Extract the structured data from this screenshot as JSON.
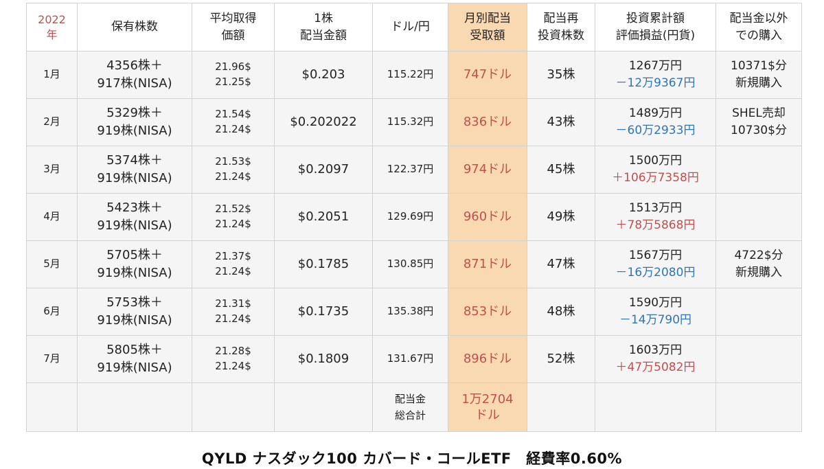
{
  "header": {
    "year": "2022",
    "year_suffix": "年",
    "cols": [
      [
        "保有株数"
      ],
      [
        "平均取得",
        "価額"
      ],
      [
        "1株",
        "配当金額"
      ],
      [
        "ドル/円"
      ],
      [
        "月別配当",
        "受取額"
      ],
      [
        "配当再",
        "投資株数"
      ],
      [
        "投資累計額",
        "評価損益(円貨)"
      ],
      [
        "配当金以外",
        "での購入"
      ]
    ]
  },
  "rows": [
    {
      "month": "1月",
      "shares": [
        "4356株＋",
        "917株(NISA)"
      ],
      "avg": [
        "21.96$",
        "21.25$"
      ],
      "dividend": "$0.203",
      "fx": "115.22円",
      "monthly": "747ドル",
      "reinvest": "35株",
      "total_invest": "1267万円",
      "pl": "－12万9367円",
      "pl_sign": "neg",
      "other": [
        "10371$分",
        "新規購入"
      ]
    },
    {
      "month": "2月",
      "shares": [
        "5329株＋",
        "919株(NISA)"
      ],
      "avg": [
        "21.54$",
        "21.24$"
      ],
      "dividend": "$0.202022",
      "fx": "115.32円",
      "monthly": "836ドル",
      "reinvest": "43株",
      "total_invest": "1489万円",
      "pl": "－60万2933円",
      "pl_sign": "neg",
      "other": [
        "SHEL売却",
        "10730$分"
      ]
    },
    {
      "month": "3月",
      "shares": [
        "5374株＋",
        "919株(NISA)"
      ],
      "avg": [
        "21.53$",
        "21.24$"
      ],
      "dividend": "$0.2097",
      "fx": "122.37円",
      "monthly": "974ドル",
      "reinvest": "45株",
      "total_invest": "1500万円",
      "pl": "＋106万7358円",
      "pl_sign": "pos",
      "other": [
        "",
        ""
      ]
    },
    {
      "month": "4月",
      "shares": [
        "5423株＋",
        "919株(NISA)"
      ],
      "avg": [
        "21.52$",
        "21.24$"
      ],
      "dividend": "$0.2051",
      "fx": "129.69円",
      "monthly": "960ドル",
      "reinvest": "49株",
      "total_invest": "1513万円",
      "pl": "＋78万5868円",
      "pl_sign": "pos",
      "other": [
        "",
        ""
      ]
    },
    {
      "month": "5月",
      "shares": [
        "5705株＋",
        "919株(NISA)"
      ],
      "avg": [
        "21.37$",
        "21.24$"
      ],
      "dividend": "$0.1785",
      "fx": "130.85円",
      "monthly": "871ドル",
      "reinvest": "47株",
      "total_invest": "1567万円",
      "pl": "－16万2080円",
      "pl_sign": "neg",
      "other": [
        "4722$分",
        "新規購入"
      ]
    },
    {
      "month": "6月",
      "shares": [
        "5753株＋",
        "919株(NISA)"
      ],
      "avg": [
        "21.31$",
        "21.24$"
      ],
      "dividend": "$0.1735",
      "fx": "135.38円",
      "monthly": "853ドル",
      "reinvest": "48株",
      "total_invest": "1590万円",
      "pl": "－14万790円",
      "pl_sign": "neg",
      "other": [
        "",
        ""
      ]
    },
    {
      "month": "7月",
      "shares": [
        "5805株＋",
        "919株(NISA)"
      ],
      "avg": [
        "21.28$",
        "21.24$"
      ],
      "dividend": "$0.1809",
      "fx": "131.67円",
      "monthly": "896ドル",
      "reinvest": "52株",
      "total_invest": "1603万円",
      "pl": "＋47万5082円",
      "pl_sign": "pos",
      "other": [
        "",
        ""
      ]
    }
  ],
  "total": {
    "label": [
      "配当金",
      "総合計"
    ],
    "value": [
      "1万2704",
      "ドル"
    ]
  },
  "caption": "QYLD ナスダック100 カバード・コールETF　経費率0.60%",
  "colors": {
    "accent_red": "#c0504d",
    "accent_blue": "#2e75b6",
    "highlight_column": "#f9d9b2",
    "row_background": "#f5f5f5"
  }
}
